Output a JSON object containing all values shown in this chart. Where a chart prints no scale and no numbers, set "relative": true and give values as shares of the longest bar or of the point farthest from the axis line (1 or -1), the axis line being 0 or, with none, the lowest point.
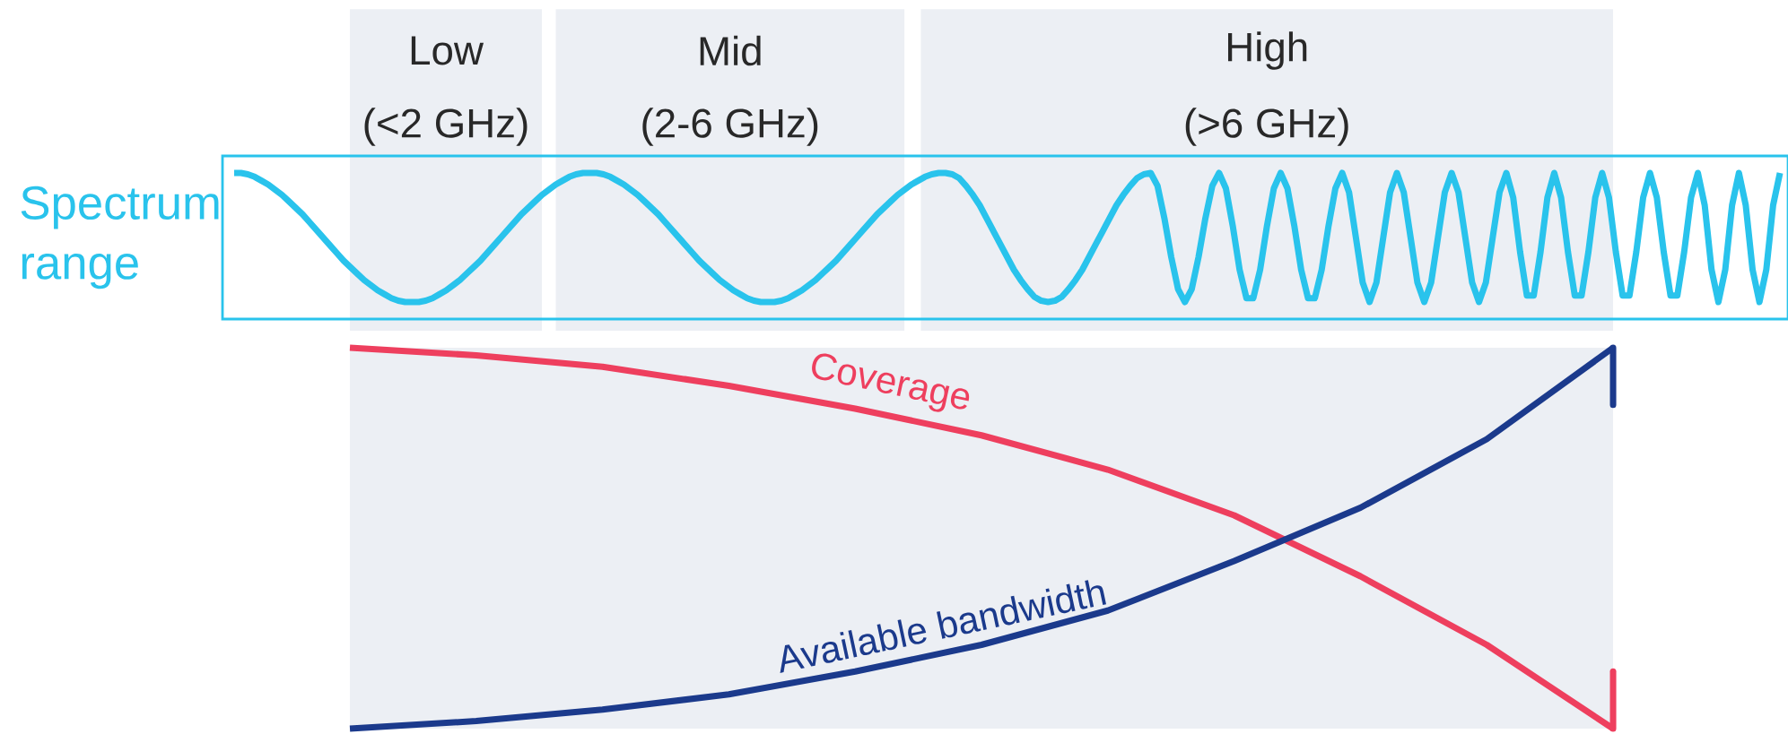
{
  "chart_data": [
    {
      "type": "line",
      "relative": true,
      "ylabel": "Spectrum range",
      "marker": "none",
      "line_style": "solid",
      "categories": [
        null,
        null,
        null,
        null,
        null,
        null,
        null,
        null,
        null,
        null,
        null,
        null,
        null,
        null,
        null,
        null,
        null,
        null,
        null,
        null,
        null,
        null,
        null,
        null,
        null,
        null,
        null,
        null,
        null,
        null,
        null,
        null,
        null,
        null,
        null,
        null,
        null,
        null,
        null,
        null,
        null,
        null,
        null,
        null,
        null,
        null,
        null,
        null,
        null,
        null,
        null,
        null,
        null,
        null,
        null,
        null,
        null,
        null,
        null,
        null,
        null,
        null,
        null,
        null,
        null,
        null,
        null,
        null,
        null,
        null,
        null,
        null,
        null,
        null,
        null,
        null,
        null,
        null,
        null,
        null,
        null,
        null,
        null,
        null,
        null,
        null,
        null,
        null,
        null,
        null,
        null,
        null,
        null,
        null,
        null,
        null,
        null,
        null,
        null,
        null,
        null,
        null,
        null,
        null,
        null,
        null,
        null,
        null,
        null,
        null,
        null,
        null,
        null,
        null,
        null,
        null,
        null,
        null,
        null,
        null,
        null,
        null,
        null,
        null,
        null,
        null,
        null,
        null,
        null,
        null,
        null,
        null,
        null,
        null,
        null,
        null,
        null,
        null,
        null,
        null,
        null,
        null,
        null,
        null,
        null,
        null,
        null,
        null,
        null,
        null,
        null,
        null,
        null,
        null,
        null,
        null,
        null,
        null,
        null,
        null,
        null,
        null,
        null,
        null,
        null,
        null,
        null,
        null,
        null,
        null,
        null,
        null,
        null,
        null,
        null,
        null,
        null,
        null,
        null,
        null,
        null,
        null,
        null,
        null,
        null,
        null,
        null,
        null,
        null,
        null,
        null,
        null,
        null,
        null,
        null,
        null,
        null,
        null,
        null,
        null,
        null,
        null,
        null,
        null,
        null,
        null,
        null,
        null,
        null,
        null,
        null,
        null,
        null,
        null,
        null,
        null,
        null,
        null,
        null,
        null,
        null,
        null,
        null,
        null,
        null,
        null,
        null
      ],
      "series": [
        {
          "color": "#29c3ec",
          "values": [
            1,
            1,
            0.99,
            0.97,
            0.94,
            0.91,
            0.87,
            0.83,
            0.78,
            0.73,
            0.68,
            0.62,
            0.56,
            0.5,
            0.44,
            0.38,
            0.32,
            0.27,
            0.22,
            0.17,
            0.13,
            0.09,
            0.06,
            0.03,
            0.01,
            0,
            0,
            0,
            0.01,
            0.03,
            0.06,
            0.09,
            0.13,
            0.17,
            0.22,
            0.27,
            0.32,
            0.38,
            0.44,
            0.5,
            0.56,
            0.62,
            0.68,
            0.73,
            0.78,
            0.83,
            0.87,
            0.91,
            0.94,
            0.97,
            0.99,
            1,
            1,
            1,
            0.99,
            0.97,
            0.94,
            0.91,
            0.87,
            0.83,
            0.78,
            0.73,
            0.68,
            0.62,
            0.56,
            0.5,
            0.44,
            0.38,
            0.32,
            0.27,
            0.22,
            0.17,
            0.13,
            0.09,
            0.06,
            0.03,
            0.01,
            0,
            0,
            0,
            0.01,
            0.03,
            0.06,
            0.09,
            0.13,
            0.17,
            0.22,
            0.27,
            0.32,
            0.38,
            0.44,
            0.5,
            0.56,
            0.62,
            0.68,
            0.73,
            0.78,
            0.83,
            0.87,
            0.91,
            0.94,
            0.97,
            0.99,
            1,
            1,
            0.99,
            0.96,
            0.9,
            0.83,
            0.75,
            0.65,
            0.55,
            0.45,
            0.35,
            0.25,
            0.17,
            0.1,
            0.04,
            0.01,
            0,
            0.01,
            0.04,
            0.1,
            0.17,
            0.25,
            0.35,
            0.45,
            0.55,
            0.65,
            0.75,
            0.83,
            0.9,
            0.96,
            0.99,
            1,
            0.9,
            0.65,
            0.35,
            0.1,
            0,
            0.1,
            0.35,
            0.65,
            0.9,
            1,
            0.88,
            0.59,
            0.25,
            0.03,
            0.03,
            0.25,
            0.59,
            0.88,
            1,
            0.88,
            0.59,
            0.25,
            0.03,
            0.03,
            0.25,
            0.59,
            0.88,
            1,
            0.85,
            0.5,
            0.15,
            0,
            0.15,
            0.5,
            0.85,
            1,
            0.85,
            0.5,
            0.15,
            0,
            0.15,
            0.5,
            0.85,
            1,
            0.85,
            0.5,
            0.15,
            0,
            0.15,
            0.5,
            0.85,
            1,
            0.81,
            0.39,
            0.05,
            0.05,
            0.39,
            0.81,
            1,
            0.81,
            0.39,
            0.05,
            0.05,
            0.39,
            0.81,
            1,
            0.81,
            0.39,
            0.05,
            0.05,
            0.39,
            0.81,
            1,
            0.81,
            0.39,
            0.05,
            0.05,
            0.39,
            0.81,
            1,
            0.75,
            0.25,
            0,
            0.25,
            0.75,
            1,
            0.75,
            0.25,
            0,
            0.25,
            0.75,
            1
          ]
        }
      ]
    },
    {
      "type": "line",
      "relative": true,
      "legend": false,
      "marker": "none",
      "line_style": "solid",
      "categories": [
        null,
        null,
        null,
        null,
        null,
        null,
        null,
        null,
        null,
        null,
        null
      ],
      "series": [
        {
          "name": "Coverage",
          "color": "#ee3f5e",
          "values": [
            1.0,
            0.98,
            0.95,
            0.9,
            0.84,
            0.77,
            0.68,
            0.56,
            0.4,
            0.22,
            0
          ]
        },
        {
          "name": "Available bandwidth",
          "color": "#1b3a8c",
          "values": [
            0,
            0.02,
            0.05,
            0.09,
            0.15,
            0.22,
            0.31,
            0.44,
            0.58,
            0.76,
            1.0
          ]
        }
      ],
      "annotations": [
        "Low",
        "(<2 GHz)",
        "Mid",
        "(2-6 GHz)",
        "High",
        "(>6 GHz)"
      ]
    }
  ]
}
